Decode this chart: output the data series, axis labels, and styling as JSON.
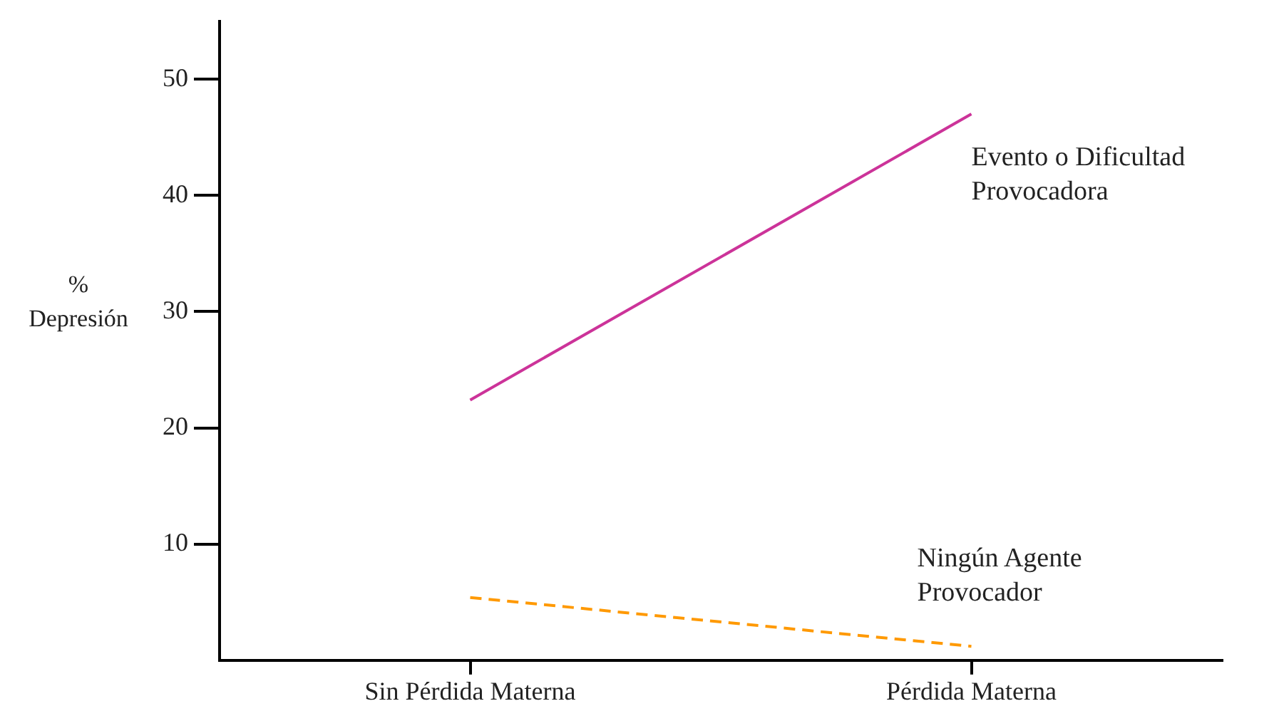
{
  "chart_data": {
    "type": "line",
    "ylabel": "% Depresión",
    "categories": [
      "Sin Pérdida Materna",
      "Pérdida Materna"
    ],
    "series": [
      {
        "name": "Evento o Dificultad Provocadora",
        "color": "#cc3399",
        "values": [
          22.4,
          47
        ],
        "line_style": "solid"
      },
      {
        "name": "Ningún Agente Provocador",
        "color": "#ff9900",
        "values": [
          5.4,
          1.2
        ],
        "line_style": "dashed"
      }
    ],
    "ylim": [
      0,
      55
    ],
    "yticks": [
      10,
      20,
      30,
      40,
      50
    ],
    "grid": false,
    "legend": false,
    "marker": "none"
  }
}
